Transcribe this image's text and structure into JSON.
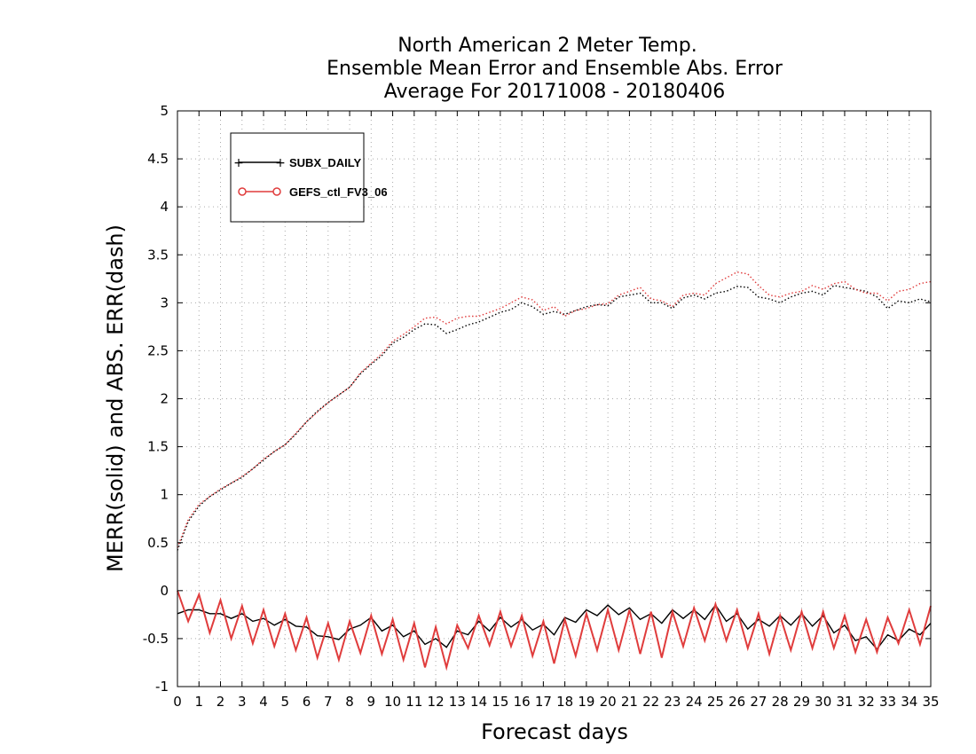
{
  "chart_data": {
    "type": "line",
    "title_lines": [
      "North American 2 Meter Temp.",
      "Ensemble Mean Error and Ensemble Abs. Error",
      "Average For 20171008 - 20180406"
    ],
    "xlabel": "Forecast days",
    "ylabel": "MERR(solid) and ABS. ERR(dash)",
    "xlim": [
      0,
      35
    ],
    "ylim": [
      -1,
      5
    ],
    "x_ticks": [
      0,
      1,
      2,
      3,
      4,
      5,
      6,
      7,
      8,
      9,
      10,
      11,
      12,
      13,
      14,
      15,
      16,
      17,
      18,
      19,
      20,
      21,
      22,
      23,
      24,
      25,
      26,
      27,
      28,
      29,
      30,
      31,
      32,
      33,
      34,
      35
    ],
    "y_ticks": [
      -1,
      -0.5,
      0,
      0.5,
      1,
      1.5,
      2,
      2.5,
      3,
      3.5,
      4,
      4.5,
      5
    ],
    "y_tick_labels": [
      "-1",
      "-0.5",
      "0",
      "0.5",
      "1",
      "1.5",
      "2",
      "2.5",
      "3",
      "3.5",
      "4",
      "4.5",
      "5"
    ],
    "x_tick_labels": [
      "0",
      "1",
      "2",
      "3",
      "4",
      "5",
      "6",
      "7",
      "8",
      "9",
      "10",
      "11",
      "12",
      "13",
      "14",
      "15",
      "16",
      "17",
      "18",
      "19",
      "20",
      "21",
      "22",
      "23",
      "24",
      "25",
      "26",
      "27",
      "28",
      "29",
      "30",
      "31",
      "32",
      "33",
      "34",
      "35"
    ],
    "grid": true,
    "legend_position": "top-left",
    "series": [
      {
        "name": "SUBX_DAILY",
        "color": "#000000",
        "marker": "plus",
        "merr_x": [
          0,
          0.5,
          1,
          1.5,
          2,
          2.5,
          3,
          3.5,
          4,
          4.5,
          5,
          5.5,
          6,
          6.5,
          7,
          7.5,
          8,
          8.5,
          9,
          9.5,
          10,
          10.5,
          11,
          11.5,
          12,
          12.5,
          13,
          13.5,
          14,
          14.5,
          15,
          15.5,
          16,
          16.5,
          17,
          17.5,
          18,
          18.5,
          19,
          19.5,
          20,
          20.5,
          21,
          21.5,
          22,
          22.5,
          23,
          23.5,
          24,
          24.5,
          25,
          25.5,
          26,
          26.5,
          27,
          27.5,
          28,
          28.5,
          29,
          29.5,
          30,
          30.5,
          31,
          31.5,
          32,
          32.5,
          33,
          33.5,
          34,
          34.5,
          35
        ],
        "merr_y": [
          -0.24,
          -0.2,
          -0.2,
          -0.24,
          -0.24,
          -0.29,
          -0.24,
          -0.32,
          -0.29,
          -0.36,
          -0.3,
          -0.37,
          -0.38,
          -0.47,
          -0.48,
          -0.51,
          -0.4,
          -0.36,
          -0.28,
          -0.42,
          -0.36,
          -0.48,
          -0.42,
          -0.56,
          -0.5,
          -0.59,
          -0.42,
          -0.46,
          -0.32,
          -0.42,
          -0.28,
          -0.38,
          -0.3,
          -0.41,
          -0.35,
          -0.46,
          -0.28,
          -0.33,
          -0.2,
          -0.26,
          -0.15,
          -0.25,
          -0.18,
          -0.3,
          -0.24,
          -0.34,
          -0.2,
          -0.29,
          -0.2,
          -0.3,
          -0.15,
          -0.32,
          -0.24,
          -0.4,
          -0.3,
          -0.37,
          -0.26,
          -0.36,
          -0.24,
          -0.37,
          -0.26,
          -0.44,
          -0.36,
          -0.52,
          -0.48,
          -0.61,
          -0.46,
          -0.52,
          -0.4,
          -0.46,
          -0.34
        ],
        "abs_x": [
          0,
          0.5,
          1,
          1.5,
          2,
          2.5,
          3,
          3.5,
          4,
          4.5,
          5,
          5.5,
          6,
          6.5,
          7,
          7.5,
          8,
          8.5,
          9,
          9.5,
          10,
          10.5,
          11,
          11.5,
          12,
          12.5,
          13,
          13.5,
          14,
          14.5,
          15,
          15.5,
          16,
          16.5,
          17,
          17.5,
          18,
          18.5,
          19,
          19.5,
          20,
          20.5,
          21,
          21.5,
          22,
          22.5,
          23,
          23.5,
          24,
          24.5,
          25,
          25.5,
          26,
          26.5,
          27,
          27.5,
          28,
          28.5,
          29,
          29.5,
          30,
          30.5,
          31,
          31.5,
          32,
          32.5,
          33,
          33.5,
          34,
          34.5,
          35
        ],
        "abs_y": [
          0.42,
          0.72,
          0.88,
          0.98,
          1.05,
          1.12,
          1.18,
          1.27,
          1.36,
          1.45,
          1.52,
          1.63,
          1.76,
          1.87,
          1.96,
          2.04,
          2.12,
          2.26,
          2.36,
          2.45,
          2.58,
          2.64,
          2.72,
          2.78,
          2.77,
          2.68,
          2.72,
          2.77,
          2.8,
          2.85,
          2.9,
          2.93,
          3.0,
          2.96,
          2.88,
          2.91,
          2.88,
          2.92,
          2.96,
          2.98,
          2.97,
          3.06,
          3.08,
          3.1,
          3.0,
          3.0,
          2.94,
          3.05,
          3.08,
          3.04,
          3.1,
          3.12,
          3.17,
          3.16,
          3.06,
          3.04,
          3.0,
          3.06,
          3.1,
          3.12,
          3.08,
          3.18,
          3.16,
          3.14,
          3.12,
          3.06,
          2.94,
          3.02,
          3.0,
          3.04,
          3.01
        ]
      },
      {
        "name": "GEFS_ctl_FV3_06",
        "color": "#e03c3c",
        "marker": "circle",
        "merr_x": [
          0,
          0.5,
          1,
          1.5,
          2,
          2.5,
          3,
          3.5,
          4,
          4.5,
          5,
          5.5,
          6,
          6.5,
          7,
          7.5,
          8,
          8.5,
          9,
          9.5,
          10,
          10.5,
          11,
          11.5,
          12,
          12.5,
          13,
          13.5,
          14,
          14.5,
          15,
          15.5,
          16,
          16.5,
          17,
          17.5,
          18,
          18.5,
          19,
          19.5,
          20,
          20.5,
          21,
          21.5,
          22,
          22.5,
          23,
          23.5,
          24,
          24.5,
          25,
          25.5,
          26,
          26.5,
          27,
          27.5,
          28,
          28.5,
          29,
          29.5,
          30,
          30.5,
          31,
          31.5,
          32,
          32.5,
          33,
          33.5,
          34,
          34.5,
          35
        ],
        "merr_y": [
          0.0,
          -0.32,
          -0.04,
          -0.44,
          -0.1,
          -0.5,
          -0.16,
          -0.55,
          -0.2,
          -0.58,
          -0.24,
          -0.62,
          -0.28,
          -0.7,
          -0.34,
          -0.72,
          -0.32,
          -0.65,
          -0.26,
          -0.66,
          -0.3,
          -0.72,
          -0.34,
          -0.8,
          -0.38,
          -0.8,
          -0.36,
          -0.6,
          -0.26,
          -0.57,
          -0.22,
          -0.58,
          -0.26,
          -0.68,
          -0.32,
          -0.76,
          -0.3,
          -0.68,
          -0.24,
          -0.62,
          -0.2,
          -0.62,
          -0.2,
          -0.66,
          -0.22,
          -0.7,
          -0.22,
          -0.58,
          -0.18,
          -0.52,
          -0.14,
          -0.52,
          -0.2,
          -0.6,
          -0.24,
          -0.66,
          -0.26,
          -0.62,
          -0.22,
          -0.6,
          -0.22,
          -0.6,
          -0.26,
          -0.64,
          -0.3,
          -0.64,
          -0.28,
          -0.55,
          -0.2,
          -0.56,
          -0.16
        ],
        "abs_x": [
          0,
          0.5,
          1,
          1.5,
          2,
          2.5,
          3,
          3.5,
          4,
          4.5,
          5,
          5.5,
          6,
          6.5,
          7,
          7.5,
          8,
          8.5,
          9,
          9.5,
          10,
          10.5,
          11,
          11.5,
          12,
          12.5,
          13,
          13.5,
          14,
          14.5,
          15,
          15.5,
          16,
          16.5,
          17,
          17.5,
          18,
          18.5,
          19,
          19.5,
          20,
          20.5,
          21,
          21.5,
          22,
          22.5,
          23,
          23.5,
          24,
          24.5,
          25,
          25.5,
          26,
          26.5,
          27,
          27.5,
          28,
          28.5,
          29,
          29.5,
          30,
          30.5,
          31,
          31.5,
          32,
          32.5,
          33,
          33.5,
          34,
          34.5,
          35
        ],
        "abs_y": [
          0.45,
          0.74,
          0.9,
          0.98,
          1.06,
          1.12,
          1.19,
          1.27,
          1.37,
          1.45,
          1.52,
          1.64,
          1.76,
          1.86,
          1.96,
          2.04,
          2.12,
          2.27,
          2.37,
          2.47,
          2.6,
          2.67,
          2.75,
          2.84,
          2.85,
          2.78,
          2.84,
          2.86,
          2.86,
          2.9,
          2.94,
          3.0,
          3.06,
          3.03,
          2.92,
          2.96,
          2.86,
          2.92,
          2.94,
          2.98,
          2.99,
          3.08,
          3.12,
          3.16,
          3.04,
          3.02,
          2.96,
          3.08,
          3.1,
          3.08,
          3.2,
          3.26,
          3.32,
          3.3,
          3.18,
          3.08,
          3.06,
          3.1,
          3.12,
          3.18,
          3.14,
          3.2,
          3.22,
          3.14,
          3.1,
          3.1,
          3.02,
          3.12,
          3.14,
          3.2,
          3.22
        ]
      }
    ],
    "legend_entries": [
      {
        "label": "SUBX_DAILY",
        "color": "#000000",
        "marker": "plus"
      },
      {
        "label": "GEFS_ctl_FV3_06",
        "color": "#e03c3c",
        "marker": "circle"
      }
    ]
  }
}
